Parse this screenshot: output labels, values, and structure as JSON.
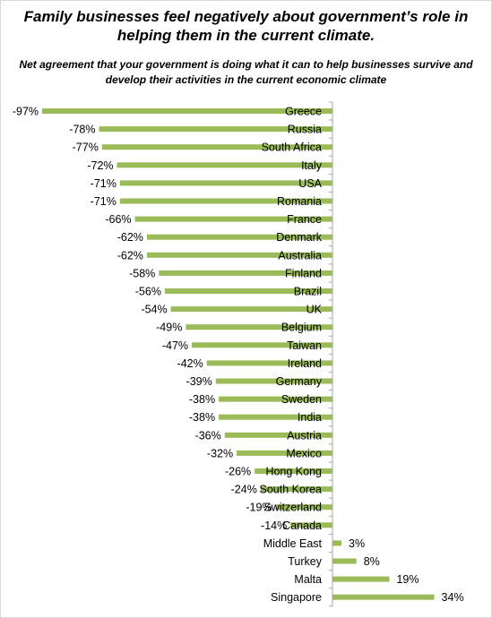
{
  "chart_data": {
    "type": "bar",
    "orientation": "horizontal",
    "title": "Family businesses feel negatively about government’s role in helping them in the current climate.",
    "subtitle": "Net agreement that your government is doing what it can to help businesses survive and develop their activities in the current economic climate",
    "categories": [
      "Greece",
      "Russia",
      "South Africa",
      "Italy",
      "USA",
      "Romania",
      "France",
      "Denmark",
      "Australia",
      "Finland",
      "Brazil",
      "UK",
      "Belgium",
      "Taiwan",
      "Ireland",
      "Germany",
      "Sweden",
      "India",
      "Austria",
      "Mexico",
      "Hong Kong",
      "South Korea",
      "Switzerland",
      "Canada",
      "Middle East",
      "Turkey",
      "Malta",
      "Singapore"
    ],
    "values": [
      -97,
      -78,
      -77,
      -72,
      -71,
      -71,
      -66,
      -62,
      -62,
      -58,
      -56,
      -54,
      -49,
      -47,
      -42,
      -39,
      -38,
      -38,
      -36,
      -32,
      -26,
      -24,
      -19,
      -14,
      3,
      8,
      19,
      34
    ],
    "value_labels": [
      "-97%",
      "-78%",
      "-77%",
      "-72%",
      "-71%",
      "-71%",
      "-66%",
      "-62%",
      "-62%",
      "-58%",
      "-56%",
      "-54%",
      "-49%",
      "-47%",
      "-42%",
      "-39%",
      "-38%",
      "-38%",
      "-36%",
      "-32%",
      "-26%",
      "-24%",
      "-19%",
      "-14%",
      "3%",
      "8%",
      "19%",
      "34%"
    ],
    "bar_color": "#9bbb59",
    "axis_color": "#a6a6a6",
    "grid": false,
    "legend": "none"
  }
}
